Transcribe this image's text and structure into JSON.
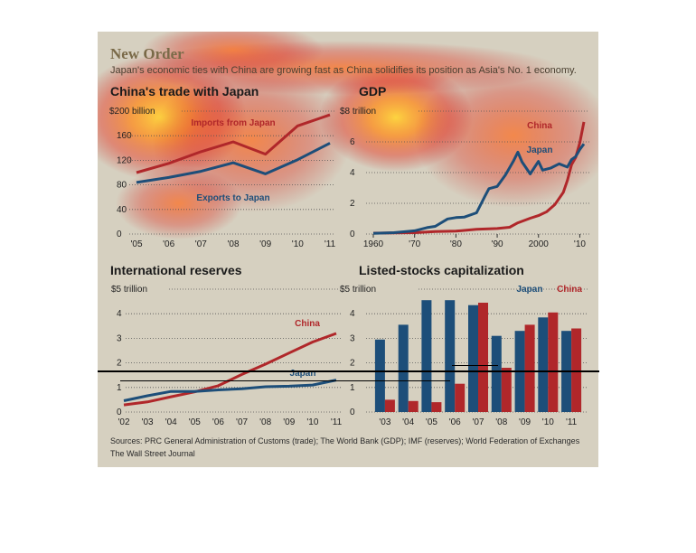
{
  "header": {
    "title": "New Order",
    "subtitle": "Japan's economic ties with China are growing fast as China solidifies its position as Asia's No. 1 economy."
  },
  "footer": {
    "sources": "Sources: PRC General Administration of Customs (trade); The World Bank (GDP); IMF (reserves); World Federation of Exchanges",
    "publisher": "The Wall Street Journal"
  },
  "colors": {
    "china": "#b0272a",
    "japan": "#1d4e79",
    "background": "#d6d0c0"
  },
  "chart_data": [
    {
      "type": "line",
      "title": "China's trade with Japan",
      "x": [
        "'05",
        "'06",
        "'07",
        "'08",
        "'09",
        "'10",
        "'11"
      ],
      "ylim": [
        0,
        200
      ],
      "yticks": [
        0,
        40,
        80,
        120,
        160
      ],
      "top_tick_label": "$200 billion",
      "series": [
        {
          "name": "Imports from Japan",
          "color": "#b0272a",
          "values": [
            100,
            115,
            134,
            150,
            130,
            176,
            194
          ]
        },
        {
          "name": "Exports to Japan",
          "color": "#1d4e79",
          "values": [
            84,
            92,
            102,
            116,
            98,
            121,
            148
          ]
        }
      ]
    },
    {
      "type": "line",
      "title": "GDP",
      "xlim": [
        1960,
        2011
      ],
      "xticks": [
        "1960",
        "'70",
        "'80",
        "'90",
        "2000",
        "'10"
      ],
      "ylim": [
        0,
        8
      ],
      "yticks": [
        0,
        2,
        4,
        6
      ],
      "top_tick_label": "$8 trillion",
      "series": [
        {
          "name": "China",
          "color": "#b0272a",
          "x": [
            1960,
            1965,
            1970,
            1975,
            1980,
            1985,
            1990,
            1993,
            1995,
            1998,
            2000,
            2002,
            2004,
            2006,
            2007,
            2008,
            2009,
            2010,
            2011
          ],
          "values": [
            0.06,
            0.07,
            0.09,
            0.16,
            0.19,
            0.31,
            0.36,
            0.44,
            0.73,
            1.03,
            1.2,
            1.45,
            1.93,
            2.71,
            3.49,
            4.52,
            4.99,
            5.93,
            7.3
          ]
        },
        {
          "name": "Japan",
          "color": "#1d4e79",
          "x": [
            1960,
            1965,
            1970,
            1973,
            1975,
            1978,
            1980,
            1982,
            1985,
            1987,
            1988,
            1990,
            1992,
            1994,
            1995,
            1996,
            1998,
            2000,
            2001,
            2003,
            2005,
            2007,
            2008,
            2009,
            2010,
            2011
          ],
          "values": [
            0.04,
            0.09,
            0.21,
            0.42,
            0.5,
            0.98,
            1.07,
            1.1,
            1.38,
            2.45,
            2.95,
            3.1,
            3.85,
            4.78,
            5.33,
            4.7,
            3.91,
            4.73,
            4.16,
            4.3,
            4.57,
            4.36,
            4.85,
            5.04,
            5.5,
            5.87
          ]
        }
      ]
    },
    {
      "type": "line",
      "title": "International reserves",
      "x": [
        "'02",
        "'03",
        "'04",
        "'05",
        "'06",
        "'07",
        "'08",
        "'09",
        "'10",
        "'11"
      ],
      "ylim": [
        0,
        5
      ],
      "yticks": [
        0,
        1,
        2,
        3,
        4
      ],
      "top_tick_label": "$5 trillion",
      "series": [
        {
          "name": "China",
          "color": "#b0272a",
          "values": [
            0.29,
            0.41,
            0.62,
            0.82,
            1.07,
            1.53,
            1.95,
            2.4,
            2.85,
            3.2
          ]
        },
        {
          "name": "Japan",
          "color": "#1d4e79",
          "values": [
            0.46,
            0.66,
            0.84,
            0.84,
            0.9,
            0.95,
            1.03,
            1.05,
            1.1,
            1.3
          ]
        }
      ]
    },
    {
      "type": "bar",
      "title": "Listed-stocks capitalization",
      "categories": [
        "'03",
        "'04",
        "'05",
        "'06",
        "'07",
        "'08",
        "'09",
        "'10",
        "'11"
      ],
      "ylim": [
        0,
        5
      ],
      "yticks": [
        0,
        1,
        2,
        3,
        4
      ],
      "top_tick_label": "$5 trillion",
      "series": [
        {
          "name": "Japan",
          "color": "#1d4e79",
          "values": [
            2.95,
            3.55,
            4.55,
            4.55,
            4.35,
            3.1,
            3.3,
            3.85,
            3.3
          ]
        },
        {
          "name": "China",
          "color": "#b0272a",
          "values": [
            0.5,
            0.45,
            0.4,
            1.15,
            4.45,
            1.8,
            3.55,
            4.05,
            3.4
          ]
        }
      ]
    }
  ]
}
